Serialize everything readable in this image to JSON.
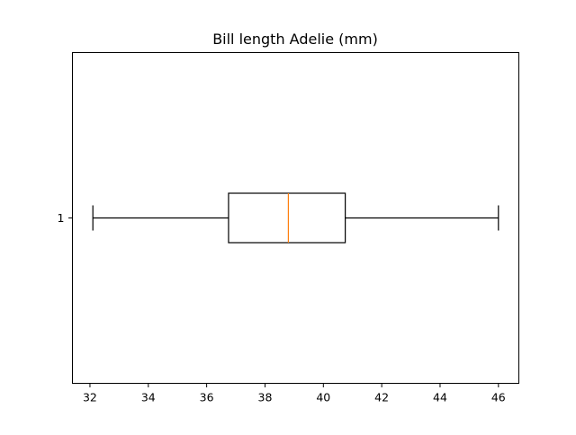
{
  "chart_data": {
    "type": "boxplot",
    "title": "Bill length Adelie (mm)",
    "orientation": "horizontal",
    "xlabel": "",
    "ylabel": "",
    "xlim": [
      31.4,
      46.7
    ],
    "xticks": [
      32,
      34,
      36,
      38,
      40,
      42,
      44,
      46
    ],
    "yticks": [
      1
    ],
    "boxes": [
      {
        "position": 1,
        "label": "1",
        "whisker_low": 32.1,
        "q1": 36.75,
        "median": 38.8,
        "q3": 40.75,
        "whisker_high": 46.0
      }
    ],
    "grid": false,
    "colors": {
      "box": "#000000",
      "median": "#ff7f0e",
      "axes": "#000000"
    }
  }
}
